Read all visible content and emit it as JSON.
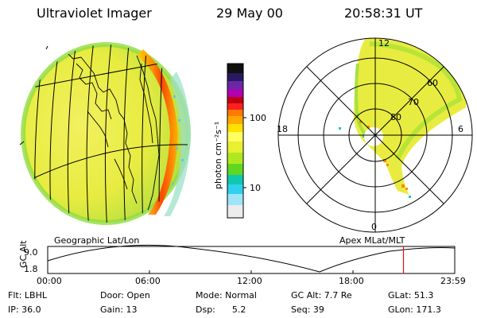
{
  "header": {
    "title": "Ultraviolet Imager",
    "date": "29 May 00",
    "time": "20:58:31 UT"
  },
  "colorbar": {
    "label": "photon cm⁻²s⁻¹",
    "ticks": [
      "100",
      "10"
    ],
    "colors": [
      "#101010",
      "#3a1a6a",
      "#7a2bb5",
      "#b000c0",
      "#c00000",
      "#ff3030",
      "#ff8a00",
      "#ffc000",
      "#ffff70",
      "#ffff30",
      "#c8f000",
      "#70e000",
      "#00c8a8",
      "#20d0ff",
      "#a0e8ff",
      "#ffffff"
    ]
  },
  "polar": {
    "mlt_labels": [
      "12",
      "18",
      "6",
      "0"
    ],
    "mlat_labels": [
      "60",
      "70",
      "80"
    ]
  },
  "orbit": {
    "left_label": "Geographic Lat/Lon",
    "right_label": "Apex MLat/MLT",
    "axis_title": "GC Alt",
    "y_top": "9.0",
    "y_bottom": "1.8",
    "x_ticks": [
      "00:00",
      "06:00",
      "12:00",
      "18:00",
      "23:59"
    ],
    "current_time_fraction": 0.874
  },
  "info": {
    "row1": {
      "flt": "Flt: LBHL",
      "door": "Door: Open",
      "mode": "Mode: Normal",
      "gcalt": "GC Alt: 7.7 Re",
      "glat": "GLat:  51.3"
    },
    "row2": {
      "ip": "IP: 36.0",
      "gain": "Gain: 13",
      "dsp": "Dsp:      5.2",
      "seq": "Seq: 39",
      "glon": "GLon: 171.3"
    }
  }
}
